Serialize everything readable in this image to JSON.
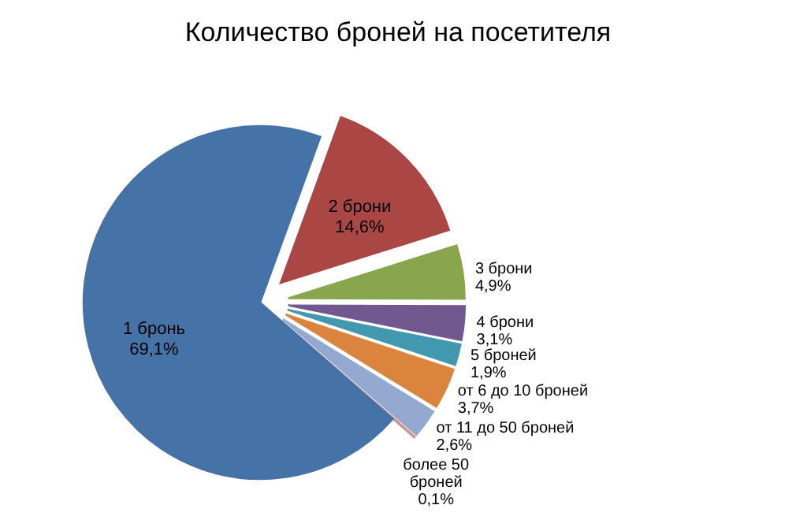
{
  "chart_data": {
    "type": "pie",
    "title": "Количество броней на посетителя",
    "categories": [
      "1 бронь",
      "2 брони",
      "3 брони",
      "4 брони",
      "5 броней",
      "от 6 до 10 броней",
      "от 11 до 50 броней",
      "более 50 броней"
    ],
    "values": [
      69.1,
      14.6,
      4.9,
      3.1,
      1.9,
      3.7,
      2.6,
      0.1
    ],
    "value_labels": [
      "69,1%",
      "14,6%",
      "4,9%",
      "3,1%",
      "1,9%",
      "3,7%",
      "2,6%",
      "0,1%"
    ],
    "colors": [
      "#4572a7",
      "#aa4643",
      "#89a54e",
      "#71588f",
      "#4198af",
      "#db843d",
      "#93a9cf",
      "#d19392"
    ]
  }
}
